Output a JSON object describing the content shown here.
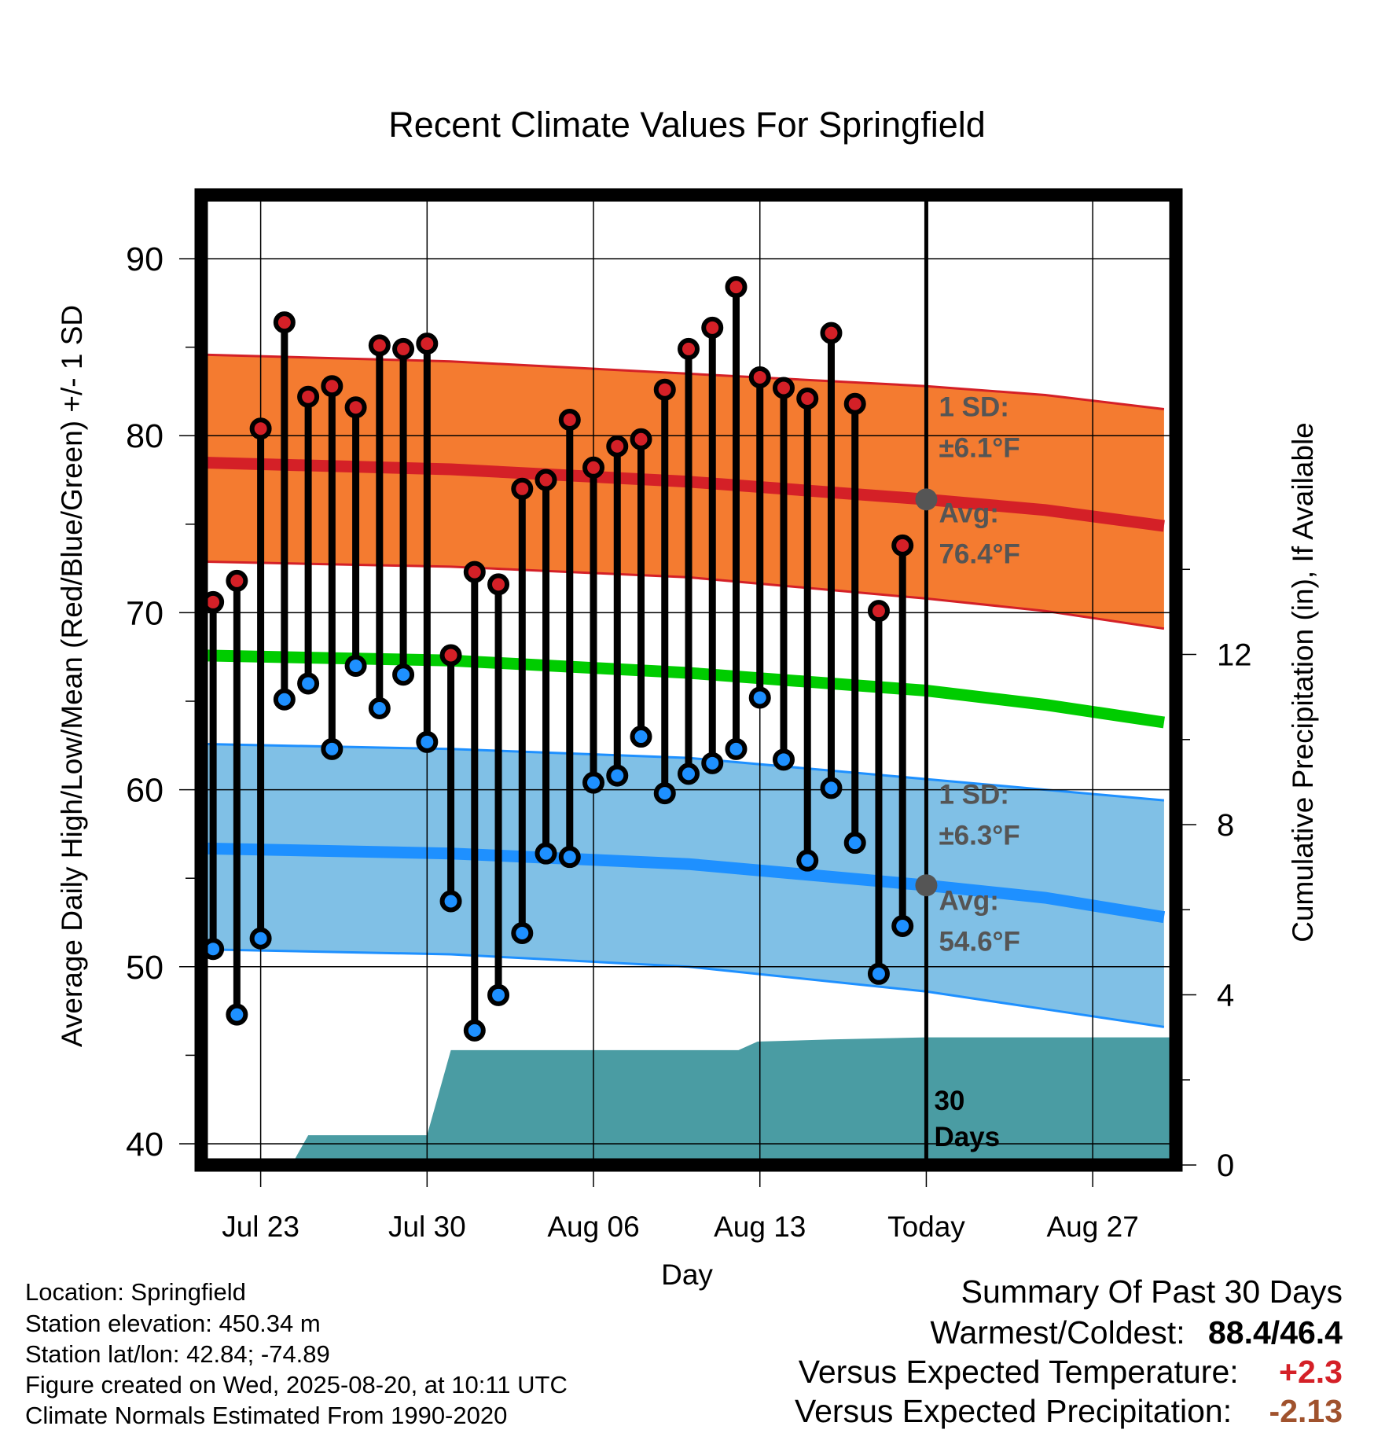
{
  "colors": {
    "high": "#d42027",
    "high_band": "#f47b30",
    "low": "#1e90ff",
    "low_band": "#80c0e6",
    "mean": "#00cc00",
    "precip": "#4a9ca3",
    "annotation": "#555555",
    "positive": "#d42027",
    "negative": "#a0522d"
  },
  "footer": {
    "location": "Location: Springfield",
    "elevation": "Station elevation: 450.34 m",
    "latlon": "Station lat/lon: 42.84; -74.89",
    "created": "Figure created on Wed, 2025-08-20, at 10:11 UTC",
    "normals": "Climate Normals Estimated From 1990-2020"
  },
  "summary": {
    "title": "Summary Of Past 30 Days",
    "warmest_coldest_label": "Warmest/Coldest:",
    "warmest_coldest_value": "88.4/46.4",
    "temp_label": "Versus Expected Temperature:",
    "temp_value": "+2.3",
    "precip_label": "Versus Expected Precipitation:",
    "precip_value": "-2.13"
  },
  "chart_data": {
    "type": "line",
    "title": "Recent Climate Values For Springfield",
    "xlabel": "Day",
    "ylabel": "Average Daily High/Low/Mean (Red/Blue/Green) +/- 1 SD",
    "ylabel_right": "Cumulative Precipitation (in), If Available",
    "x_range_days": [
      -30.5,
      10.5
    ],
    "ylim": [
      38.8,
      93.6
    ],
    "y_ticks": [
      40,
      50,
      60,
      70,
      80,
      90
    ],
    "y_minor_ticks": [
      45,
      55,
      65,
      75,
      85
    ],
    "y2lim": [
      0,
      22.8
    ],
    "y2_ticks": [
      0,
      4,
      8,
      12
    ],
    "x_ticks": [
      {
        "day": -28,
        "label": "Jul 23"
      },
      {
        "day": -21,
        "label": "Jul 30"
      },
      {
        "day": -14,
        "label": "Aug 06"
      },
      {
        "day": -7,
        "label": "Aug 13"
      },
      {
        "day": 0,
        "label": "Today"
      },
      {
        "day": 7,
        "label": "Aug 27"
      }
    ],
    "today_day": 0,
    "daily": {
      "days": [
        -30,
        -29,
        -28,
        -27,
        -26,
        -25,
        -24,
        -23,
        -22,
        -21,
        -20,
        -19,
        -18,
        -17,
        -16,
        -15,
        -14,
        -13,
        -12,
        -11,
        -10,
        -9,
        -8,
        -7,
        -6,
        -5,
        -4,
        -3,
        -2,
        -1
      ],
      "high": [
        70.6,
        71.8,
        80.4,
        86.4,
        82.2,
        82.8,
        81.6,
        85.1,
        84.9,
        85.2,
        67.6,
        72.3,
        71.6,
        77.0,
        77.5,
        80.9,
        78.2,
        79.4,
        79.8,
        82.6,
        84.9,
        86.1,
        88.4,
        83.3,
        82.7,
        82.1,
        85.8,
        81.8,
        70.1,
        73.8
      ],
      "low": [
        51.0,
        47.3,
        51.6,
        65.1,
        66.0,
        62.3,
        67.0,
        64.6,
        66.5,
        62.7,
        53.7,
        46.4,
        48.4,
        51.9,
        56.4,
        56.2,
        60.4,
        60.8,
        63.0,
        59.8,
        60.9,
        61.5,
        62.3,
        65.2,
        61.7,
        56.0,
        60.1,
        57.0,
        49.6,
        52.3
      ]
    },
    "normals": {
      "days": [
        -31,
        -20,
        -10,
        0,
        5,
        10
      ],
      "high_avg": [
        78.5,
        78.1,
        77.4,
        76.4,
        75.8,
        74.9
      ],
      "high_sd_upper": [
        84.6,
        84.2,
        83.5,
        82.8,
        82.3,
        81.5
      ],
      "high_sd_lower": [
        72.9,
        72.6,
        72.0,
        70.8,
        70.1,
        69.1
      ],
      "mean": [
        67.6,
        67.3,
        66.6,
        65.6,
        64.8,
        63.8
      ],
      "low_avg": [
        56.7,
        56.4,
        55.8,
        54.6,
        53.9,
        52.8
      ],
      "low_sd_upper": [
        62.6,
        62.3,
        61.8,
        60.6,
        60.0,
        59.4
      ],
      "low_sd_lower": [
        51.0,
        50.7,
        50.0,
        48.6,
        47.6,
        46.6
      ]
    },
    "precip": {
      "days": [
        -27.6,
        -26.7,
        -26,
        -21,
        -20,
        -7.9,
        -7.1,
        -4,
        0,
        10.5
      ],
      "values": [
        0,
        0,
        0.7,
        0.7,
        2.7,
        2.7,
        2.9,
        2.95,
        3.0,
        3.0
      ]
    },
    "annotations": {
      "high_sd_label": "1 SD:",
      "high_sd_value": "±6.1°F",
      "high_avg_label": "Avg:",
      "high_avg_value": "76.4°F",
      "high_avg_marker": 76.4,
      "low_sd_label": "1 SD:",
      "low_sd_value": "±6.3°F",
      "low_avg_label": "Avg:",
      "low_avg_value": "54.6°F",
      "low_avg_marker": 54.6,
      "precip_label_1": "30",
      "precip_label_2": "Days"
    }
  }
}
